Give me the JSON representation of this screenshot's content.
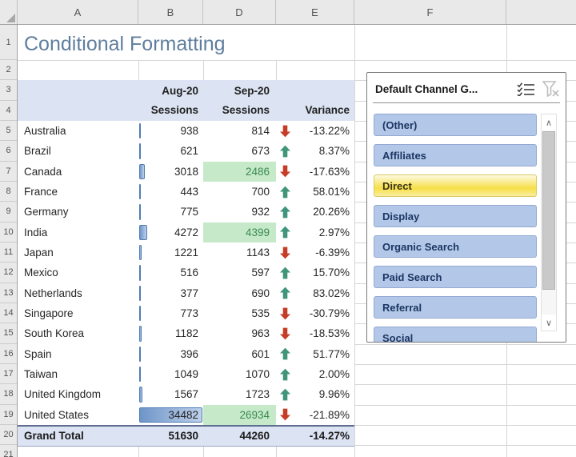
{
  "title": "Conditional Formatting",
  "grid": {
    "column_labels": [
      "",
      "A",
      "B",
      "D",
      "E",
      "F",
      ""
    ],
    "row_labels": [
      "1",
      "2",
      "3",
      "4",
      "5",
      "6",
      "7",
      "8",
      "9",
      "10",
      "11",
      "12",
      "13",
      "14",
      "15",
      "16",
      "17",
      "18",
      "19",
      "20",
      "21"
    ]
  },
  "table": {
    "headers": {
      "aug_month": "Aug-20",
      "aug_label": "Sessions",
      "sep_month": "Sep-20",
      "sep_label": "Sessions",
      "variance_label": "Variance"
    },
    "data_bar_max": 34482,
    "rows": [
      {
        "country": "Australia",
        "aug_sessions": 938,
        "sep_sessions": 814,
        "trend": "down",
        "variance": "-13.22%",
        "sep_highlight": false
      },
      {
        "country": "Brazil",
        "aug_sessions": 621,
        "sep_sessions": 673,
        "trend": "up",
        "variance": "8.37%",
        "sep_highlight": false
      },
      {
        "country": "Canada",
        "aug_sessions": 3018,
        "sep_sessions": 2486,
        "trend": "down",
        "variance": "-17.63%",
        "sep_highlight": true
      },
      {
        "country": "France",
        "aug_sessions": 443,
        "sep_sessions": 700,
        "trend": "up",
        "variance": "58.01%",
        "sep_highlight": false
      },
      {
        "country": "Germany",
        "aug_sessions": 775,
        "sep_sessions": 932,
        "trend": "up",
        "variance": "20.26%",
        "sep_highlight": false
      },
      {
        "country": "India",
        "aug_sessions": 4272,
        "sep_sessions": 4399,
        "trend": "up",
        "variance": "2.97%",
        "sep_highlight": true
      },
      {
        "country": "Japan",
        "aug_sessions": 1221,
        "sep_sessions": 1143,
        "trend": "down",
        "variance": "-6.39%",
        "sep_highlight": false
      },
      {
        "country": "Mexico",
        "aug_sessions": 516,
        "sep_sessions": 597,
        "trend": "up",
        "variance": "15.70%",
        "sep_highlight": false
      },
      {
        "country": "Netherlands",
        "aug_sessions": 377,
        "sep_sessions": 690,
        "trend": "up",
        "variance": "83.02%",
        "sep_highlight": false
      },
      {
        "country": "Singapore",
        "aug_sessions": 773,
        "sep_sessions": 535,
        "trend": "down",
        "variance": "-30.79%",
        "sep_highlight": false
      },
      {
        "country": "South Korea",
        "aug_sessions": 1182,
        "sep_sessions": 963,
        "trend": "down",
        "variance": "-18.53%",
        "sep_highlight": false
      },
      {
        "country": "Spain",
        "aug_sessions": 396,
        "sep_sessions": 601,
        "trend": "up",
        "variance": "51.77%",
        "sep_highlight": false
      },
      {
        "country": "Taiwan",
        "aug_sessions": 1049,
        "sep_sessions": 1070,
        "trend": "up",
        "variance": "2.00%",
        "sep_highlight": false
      },
      {
        "country": "United Kingdom",
        "aug_sessions": 1567,
        "sep_sessions": 1723,
        "trend": "up",
        "variance": "9.96%",
        "sep_highlight": false
      },
      {
        "country": "United States",
        "aug_sessions": 34482,
        "sep_sessions": 26934,
        "trend": "down",
        "variance": "-21.89%",
        "sep_highlight": true
      }
    ],
    "grand_total": {
      "label": "Grand Total",
      "aug_sessions": 51630,
      "sep_sessions": 44260,
      "variance": "-14.27%"
    }
  },
  "slicer": {
    "title": "Default Channel G...",
    "icons": {
      "multi_select": "multi-select-icon",
      "clear_filter": "clear-filter-icon"
    },
    "scroll_icons": {
      "up": "∧",
      "down": "∨"
    },
    "items": [
      {
        "label": "(Other)",
        "selected": false
      },
      {
        "label": "Affiliates",
        "selected": false
      },
      {
        "label": "Direct",
        "selected": true
      },
      {
        "label": "Display",
        "selected": false
      },
      {
        "label": "Organic Search",
        "selected": false
      },
      {
        "label": "Paid Search",
        "selected": false
      },
      {
        "label": "Referral",
        "selected": false
      },
      {
        "label": "Social",
        "selected": false
      }
    ]
  },
  "colors": {
    "header_band": "#dce3f2",
    "good_fill": "#c6e9c9",
    "good_text": "#3a8a50",
    "databar_start": "#6e95c8",
    "databar_end": "#bed0ea",
    "databar_border": "#4f7db3",
    "arrow_up": "#40957a",
    "arrow_down": "#c53d27",
    "title_text": "#5f7e9e",
    "slicer_item_fill": "#b3c8e8",
    "slicer_selected_fill": "#f6e047"
  }
}
